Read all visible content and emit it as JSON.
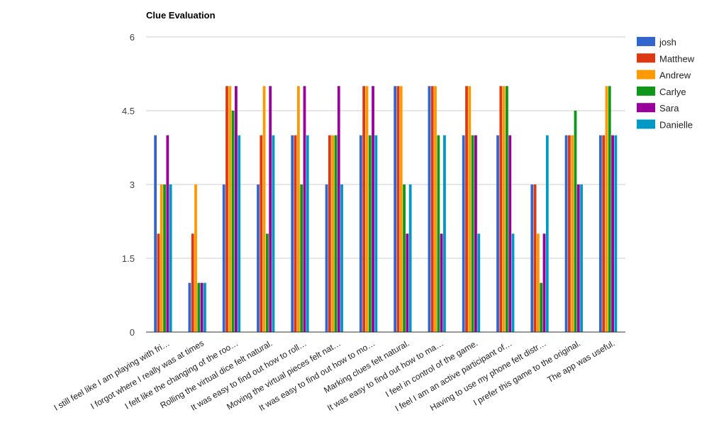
{
  "chart_data": {
    "type": "bar",
    "title": "Clue Evaluation",
    "xlabel": "",
    "ylabel": "",
    "ylim": [
      0,
      6
    ],
    "y_ticks": [
      "0",
      "1.5",
      "3",
      "4.5",
      "6"
    ],
    "y_tick_values": [
      0,
      1.5,
      3,
      4.5,
      6
    ],
    "grid": true,
    "legend_position": "right",
    "categories": [
      "I still feel like I am playing with fri…",
      "I forgot where I really was at times",
      "I felt like the changing of the roo…",
      "Rolling the virtual dice felt natural.",
      "It was easy to find out how to roll…",
      "Moving the virtual pieces felt nat…",
      "It was easy to find out how to mo…",
      "Marking clues felt natural.",
      "It was easy to find out how to ma…",
      "I feel in control of the game.",
      "I feel I am an active participant of…",
      "Having to use my phone felt distr…",
      "I prefer this game to the original.",
      "The app was useful."
    ],
    "series": [
      {
        "name": "josh",
        "color": "#3366cc",
        "values": [
          4,
          1,
          3,
          3,
          4,
          3,
          4,
          5,
          5,
          4,
          4,
          3,
          4,
          4
        ]
      },
      {
        "name": "Matthew",
        "color": "#dc3912",
        "values": [
          2,
          2,
          5,
          4,
          4,
          4,
          5,
          5,
          5,
          5,
          5,
          3,
          4,
          4
        ]
      },
      {
        "name": "Andrew",
        "color": "#ff9900",
        "values": [
          3,
          3,
          5,
          5,
          5,
          4,
          5,
          5,
          5,
          5,
          5,
          2,
          4,
          5
        ]
      },
      {
        "name": "Carlye",
        "color": "#109618",
        "values": [
          3,
          1,
          4.5,
          2,
          3,
          4,
          4,
          3,
          4,
          4,
          5,
          1,
          4.5,
          5
        ]
      },
      {
        "name": "Sara",
        "color": "#990099",
        "values": [
          4,
          1,
          5,
          5,
          5,
          5,
          5,
          2,
          2,
          4,
          4,
          2,
          3,
          4
        ]
      },
      {
        "name": "Danielle",
        "color": "#0099c6",
        "values": [
          3,
          1,
          4,
          4,
          4,
          3,
          4,
          3,
          4,
          2,
          2,
          4,
          3,
          4
        ]
      }
    ]
  }
}
